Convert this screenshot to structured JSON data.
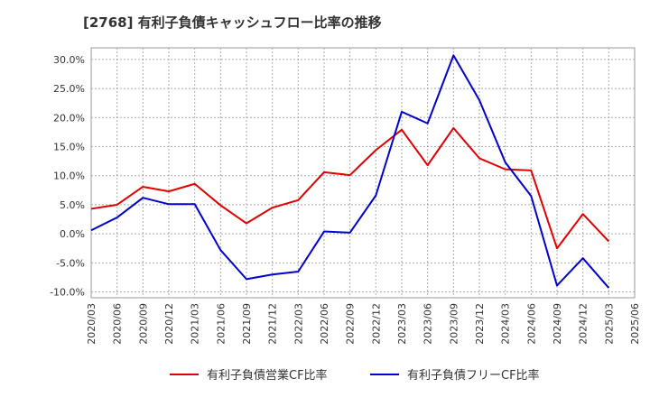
{
  "chart_data": {
    "type": "line",
    "title": "[2768]  有利子負債キャッシュフロー比率の推移",
    "xlabel": "",
    "ylabel": "",
    "x_ticks": [
      "2020/03",
      "2020/06",
      "2020/09",
      "2020/12",
      "2021/03",
      "2021/06",
      "2021/09",
      "2021/12",
      "2022/03",
      "2022/06",
      "2022/09",
      "2022/12",
      "2023/03",
      "2023/06",
      "2023/09",
      "2023/12",
      "2024/03",
      "2024/06",
      "2024/09",
      "2024/12",
      "2025/03",
      "2025/06"
    ],
    "y_ticks": [
      -10,
      -5,
      0,
      5,
      10,
      15,
      20,
      25,
      30
    ],
    "y_tick_labels": [
      "-10.0%",
      "-5.0%",
      "0.0%",
      "5.0%",
      "10.0%",
      "15.0%",
      "20.0%",
      "25.0%",
      "30.0%"
    ],
    "ylim": [
      -11,
      32
    ],
    "grid": true,
    "legend_position": "bottom",
    "series": [
      {
        "name": "有利子負債営業CF比率",
        "color": "#e00000",
        "x": [
          "2020/03",
          "2020/06",
          "2020/09",
          "2020/12",
          "2021/03",
          "2021/06",
          "2021/09",
          "2021/12",
          "2022/03",
          "2022/06",
          "2022/09",
          "2022/12",
          "2023/03",
          "2023/06",
          "2023/09",
          "2023/12",
          "2024/03",
          "2024/06",
          "2024/09",
          "2024/12",
          "2025/03"
        ],
        "values": [
          4.3,
          5.0,
          8.1,
          7.3,
          8.6,
          4.9,
          1.8,
          4.5,
          5.8,
          10.6,
          10.1,
          14.4,
          17.9,
          11.8,
          18.2,
          13.0,
          11.1,
          10.9,
          -2.5,
          3.4,
          -1.3
        ]
      },
      {
        "name": "有利子負債フリーCF比率",
        "color": "#0000cc",
        "x": [
          "2020/03",
          "2020/06",
          "2020/09",
          "2020/12",
          "2021/03",
          "2021/06",
          "2021/09",
          "2021/12",
          "2022/03",
          "2022/06",
          "2022/09",
          "2022/12",
          "2023/03",
          "2023/06",
          "2023/09",
          "2023/12",
          "2024/03",
          "2024/06",
          "2024/09",
          "2024/12",
          "2025/03"
        ],
        "values": [
          0.6,
          2.8,
          6.2,
          5.1,
          5.1,
          -2.8,
          -7.8,
          -7.0,
          -6.5,
          0.4,
          0.2,
          6.6,
          21.0,
          19.0,
          30.7,
          23.0,
          12.3,
          6.5,
          -8.9,
          -4.2,
          -9.3
        ]
      }
    ]
  }
}
